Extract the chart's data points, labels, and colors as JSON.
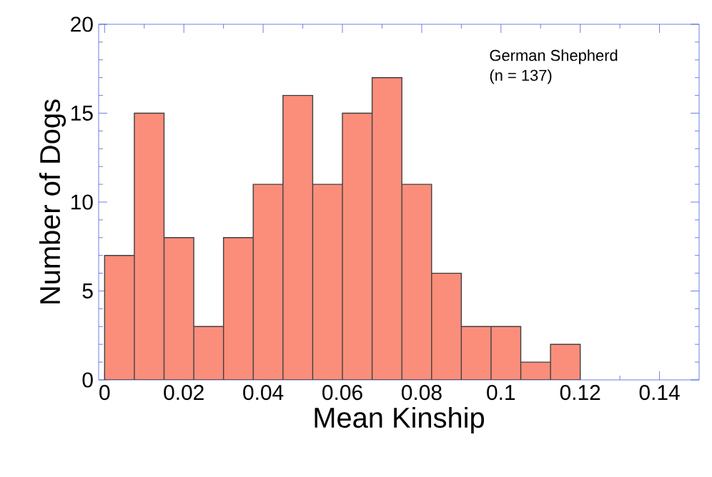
{
  "chart_data": {
    "type": "histogram",
    "xlabel": "Mean Kinship",
    "ylabel": "Number of Dogs",
    "annotations": [
      "German Shepherd",
      "(n = 137)"
    ],
    "bins": [
      0,
      0.0075,
      0.015,
      0.0225,
      0.03,
      0.0375,
      0.045,
      0.0525,
      0.06,
      0.0675,
      0.075,
      0.0825,
      0.09,
      0.0975,
      0.105,
      0.1125,
      0.12
    ],
    "values": [
      7,
      15,
      8,
      3,
      8,
      11,
      16,
      11,
      15,
      17,
      11,
      6,
      3,
      3,
      1,
      2
    ],
    "color": "#fa8e7b",
    "xlim": [
      -0.0015,
      0.15
    ],
    "ylim": [
      0,
      20
    ],
    "xticks": [
      0,
      0.02,
      0.04,
      0.06,
      0.08,
      0.1,
      0.12,
      0.14
    ],
    "yticks": [
      0,
      5,
      10,
      15,
      20
    ],
    "grid": false
  }
}
